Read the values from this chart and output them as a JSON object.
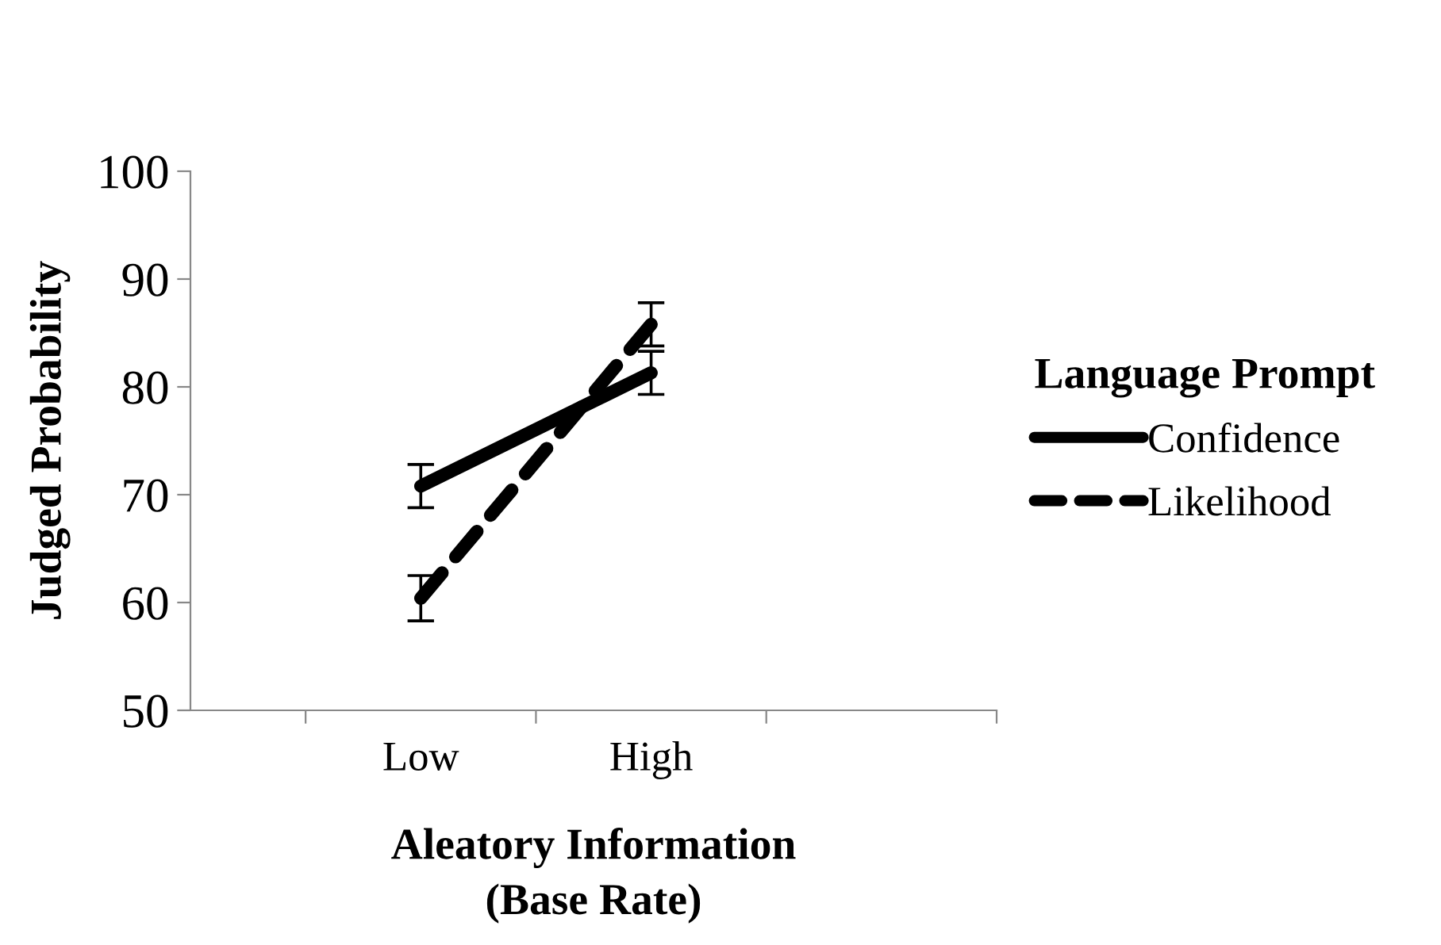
{
  "chart_data": {
    "type": "line",
    "xlabel": "Aleatory Information\n(Base Rate)",
    "ylabel": "Judged Probability",
    "legend_title": "Language Prompt",
    "categories": [
      "Low",
      "High"
    ],
    "ylim": [
      50,
      100
    ],
    "yticks": [
      50,
      60,
      70,
      80,
      90,
      100
    ],
    "grid": false,
    "legend": "right",
    "marker": "none",
    "series": [
      {
        "name": "Confidence",
        "color": "#000000",
        "line_style": "solid",
        "values": [
          70.8,
          81.3
        ],
        "errors": [
          2.0,
          2.0
        ]
      },
      {
        "name": "Likelihood",
        "color": "#000000",
        "line_style": "dashed",
        "values": [
          60.4,
          85.8
        ],
        "errors": [
          2.1,
          2.0
        ]
      }
    ]
  }
}
